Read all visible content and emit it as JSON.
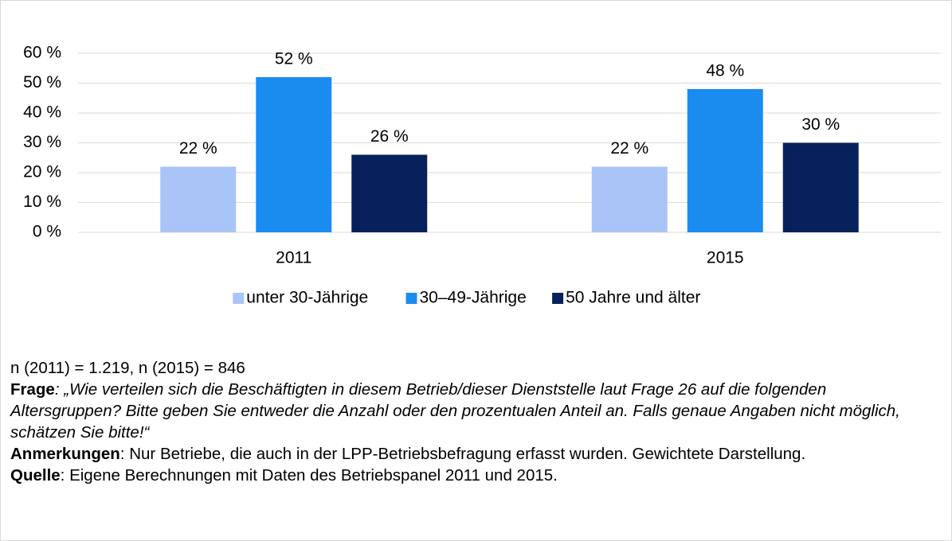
{
  "chart_data": {
    "type": "bar",
    "categories": [
      "2011",
      "2015"
    ],
    "series": [
      {
        "name": "unter 30-Jährige",
        "color": "#a9c4f7",
        "values": [
          22,
          22
        ],
        "value_labels": [
          "22 %",
          "22 %"
        ]
      },
      {
        "name": "30–49-Jährige",
        "color": "#1a8cf0",
        "values": [
          52,
          48
        ],
        "value_labels": [
          "52 %",
          "48 %"
        ]
      },
      {
        "name": "50 Jahre und älter",
        "color": "#07215c",
        "values": [
          26,
          30
        ],
        "value_labels": [
          "26 %",
          "30 %"
        ]
      }
    ],
    "ylim": [
      0,
      60
    ],
    "yticks": [
      {
        "value": 0,
        "label": "0 %"
      },
      {
        "value": 10,
        "label": "10 %"
      },
      {
        "value": 20,
        "label": "20 %"
      },
      {
        "value": 30,
        "label": "30 %"
      },
      {
        "value": 40,
        "label": "40 %"
      },
      {
        "value": 50,
        "label": "50 %"
      },
      {
        "value": 60,
        "label": "60 %"
      }
    ],
    "grid": true,
    "legend": "bottom"
  },
  "notes": {
    "sample": "n (2011) = 1.219, n (2015) = 846",
    "question": {
      "label": "Frage",
      "text": ": „Wie verteilen sich die Beschäftigten in diesem Betrieb/dieser Dienststelle laut Frage 26 auf die folgenden Altersgruppen? Bitte geben Sie entweder die Anzahl oder den prozentualen Anteil an. Falls genaue Angaben nicht möglich, schätzen Sie bitte!“"
    },
    "remarks": {
      "label": "Anmerkungen",
      "text": ": Nur Betriebe, die auch in der LPP-Betriebsbefragung erfasst wurden. Gewichtete Darstellung."
    },
    "source": {
      "label": "Quelle",
      "text": ": Eigene Berechnungen mit Daten des Betriebspanel 2011 und 2015."
    }
  }
}
